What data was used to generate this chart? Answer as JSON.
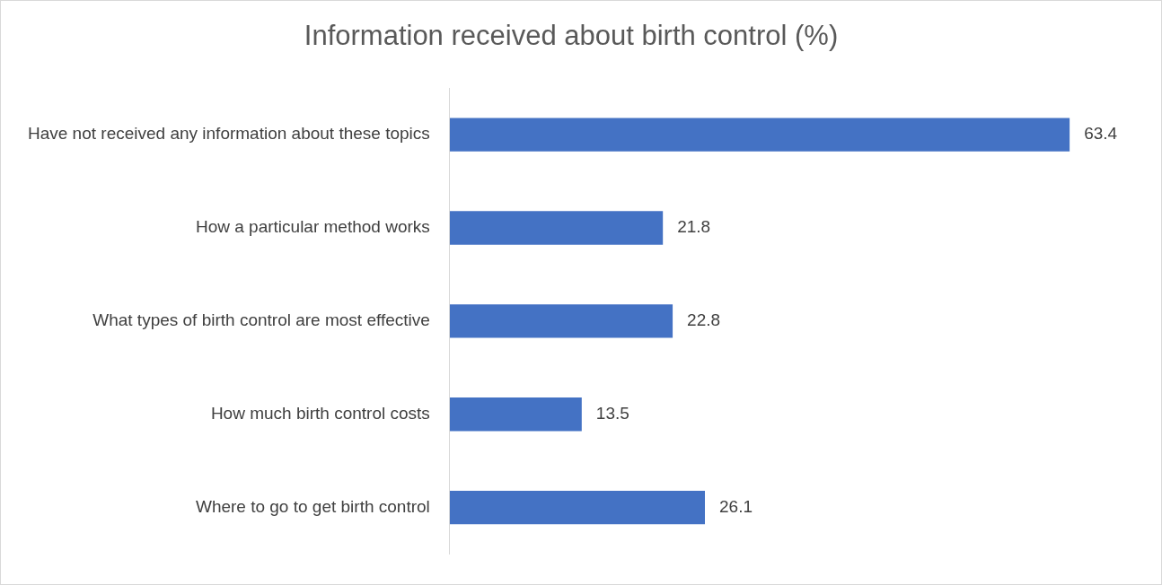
{
  "chart_data": {
    "type": "bar",
    "orientation": "horizontal",
    "title": "Information received about birth control (%)",
    "categories": [
      "Have not received any information about these topics",
      "How a particular method works",
      "What types of birth control are most effective",
      "How much birth control costs",
      "Where to go to get birth control"
    ],
    "values": [
      63.4,
      21.8,
      22.8,
      13.5,
      26.1
    ],
    "color": "#4472c4",
    "data_labels": true,
    "grid": false,
    "legend": false,
    "tick_labels": "y"
  }
}
